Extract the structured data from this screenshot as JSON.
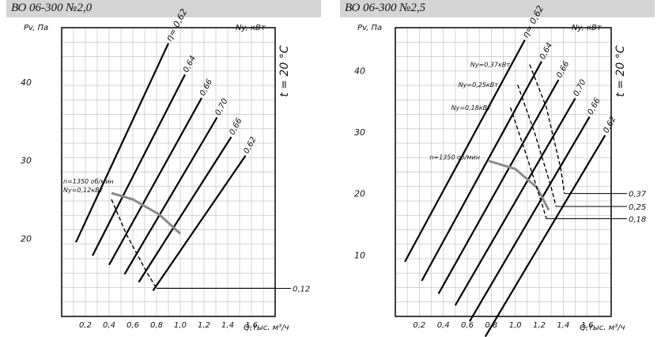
{
  "chart_data": [
    {
      "type": "line",
      "title": "ВО 06-300 №2,0",
      "ylabel": "Pv, Па",
      "ylabel_right": "Ny, кВт",
      "temperature_label": "t = 20 °С",
      "xlabel": "Q,тыс. м³/ч",
      "x_tick_labels": [
        "0,2",
        "0,4",
        "0,6",
        "0,8",
        "1,0",
        "1,2",
        "1,4",
        "1,6"
      ],
      "y_tick_labels": [
        "40",
        "30",
        "20"
      ],
      "efficiency_symbol": "η",
      "series": [
        {
          "name": "η= 0,62",
          "x": [
            0.12,
            0.9
          ],
          "y": [
            19.5,
            45.0
          ]
        },
        {
          "name": "0,64",
          "x": [
            0.26,
            1.04
          ],
          "y": [
            17.8,
            41.0
          ]
        },
        {
          "name": "0,66",
          "x": [
            0.4,
            1.18
          ],
          "y": [
            16.6,
            38.0
          ]
        },
        {
          "name": "0,70",
          "x": [
            0.53,
            1.31
          ],
          "y": [
            15.4,
            35.5
          ]
        },
        {
          "name": "0,66",
          "x": [
            0.65,
            1.43
          ],
          "y": [
            14.4,
            33.0
          ]
        },
        {
          "name": "0,62",
          "x": [
            0.77,
            1.55
          ],
          "y": [
            13.3,
            30.6
          ]
        }
      ],
      "speed_curve": {
        "label": "n=1350 об/мин",
        "x": [
          0.42,
          0.6,
          0.82,
          1.0
        ],
        "y": [
          25.8,
          25.0,
          23.1,
          20.6
        ]
      },
      "power_curves": [
        {
          "label": "Ny=0,12кВт",
          "value_label": "0,12",
          "x": [
            0.42,
            0.55,
            0.72,
            0.8
          ],
          "y": [
            25.0,
            20.4,
            15.6,
            13.6
          ]
        }
      ]
    },
    {
      "type": "line",
      "title": "ВО 06-300 №2,5",
      "ylabel": "Pv, Па",
      "ylabel_right": "Ny, кВт",
      "temperature_label": "t = 20 °С",
      "xlabel": "Q,тыс. м³/ч",
      "x_tick_labels": [
        "0,2",
        "0,4",
        "0,6",
        "0,8",
        "1,0",
        "1,2",
        "1,4",
        "1,6"
      ],
      "y_tick_labels": [
        "40",
        "30",
        "20",
        "10"
      ],
      "efficiency_symbol": "η",
      "series": [
        {
          "name": "η= 0,62",
          "x": [
            0.08,
            1.08
          ],
          "y": [
            8.9,
            45.0
          ]
        },
        {
          "name": "0,64",
          "x": [
            0.22,
            1.22
          ],
          "y": [
            5.8,
            41.5
          ]
        },
        {
          "name": "0,66",
          "x": [
            0.36,
            1.36
          ],
          "y": [
            3.7,
            38.5
          ]
        },
        {
          "name": "0,70",
          "x": [
            0.5,
            1.5
          ],
          "y": [
            1.8,
            35.5
          ]
        },
        {
          "name": "0,66",
          "x": [
            0.62,
            1.62
          ],
          "y": [
            -0.8,
            32.5
          ]
        },
        {
          "name": "0,62",
          "x": [
            0.75,
            1.75
          ],
          "y": [
            -3.3,
            29.5
          ]
        }
      ],
      "speed_curve": {
        "label": "n=1350 об/мин",
        "x": [
          0.78,
          1.0,
          1.18,
          1.28
        ],
        "y": [
          25.3,
          24.0,
          21.0,
          17.3
        ]
      },
      "power_curves": [
        {
          "label": "Ny=0,37кВт",
          "value_label": "0,37",
          "x": [
            1.12,
            1.26,
            1.38,
            1.41
          ],
          "y": [
            41.0,
            34.0,
            24.0,
            20.0
          ]
        },
        {
          "label": "Ny=0,25кВт",
          "value_label": "0,25",
          "x": [
            1.02,
            1.16,
            1.3,
            1.34
          ],
          "y": [
            37.7,
            30.0,
            21.0,
            17.9
          ]
        },
        {
          "label": "Ny=0,18кВт",
          "value_label": "0,18",
          "x": [
            0.96,
            1.08,
            1.22,
            1.26
          ],
          "y": [
            34.0,
            27.0,
            18.5,
            15.9
          ]
        }
      ]
    }
  ]
}
